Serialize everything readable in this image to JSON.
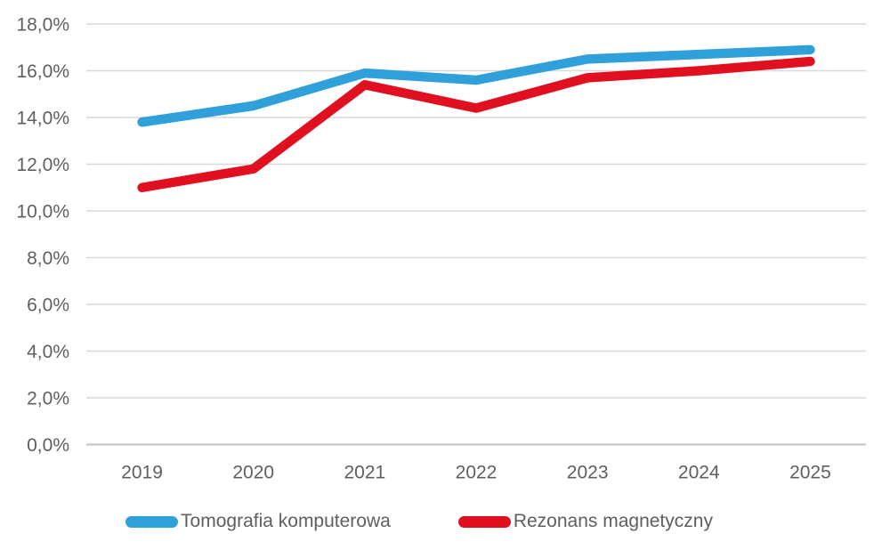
{
  "chart_data": {
    "type": "line",
    "categories": [
      "2019",
      "2020",
      "2021",
      "2022",
      "2023",
      "2024",
      "2025"
    ],
    "series": [
      {
        "name": "Tomografia komputerowa",
        "color": "#2FA0D9",
        "values": [
          13.8,
          14.5,
          15.9,
          15.6,
          16.5,
          16.7,
          16.9
        ]
      },
      {
        "name": "Rezonans magnetyczny",
        "color": "#E11020",
        "values": [
          11.0,
          11.8,
          15.4,
          14.4,
          15.7,
          16.0,
          16.4
        ]
      }
    ],
    "title": "",
    "xlabel": "",
    "ylabel": "",
    "ylim": [
      0,
      18
    ],
    "ytick_step": 2,
    "ytick_labels": [
      "0,0%",
      "2,0%",
      "4,0%",
      "6,0%",
      "8,0%",
      "10,0%",
      "12,0%",
      "14,0%",
      "16,0%",
      "18,0%"
    ],
    "grid": true,
    "legend_position": "bottom"
  },
  "style": {
    "text_color": "#5f5f5f",
    "gridline_color": "#d9d9d9",
    "axis_line_color": "#c8c8c8",
    "background_color": "#ffffff"
  }
}
